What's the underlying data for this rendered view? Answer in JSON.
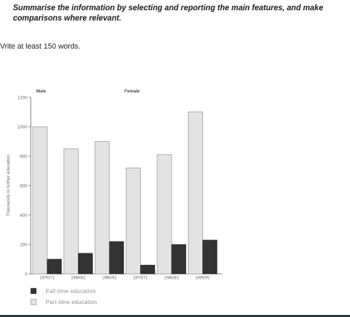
{
  "instruction": "Summarise the information by selecting and reporting the main features, and make comparisons where relevant.",
  "task_note": "Vrite at least 150 words.",
  "chart_data": {
    "type": "bar",
    "title": "",
    "ylabel": "Thousands in further education",
    "xlabel": "",
    "ylim": [
      0,
      1200
    ],
    "yticks": [
      0,
      200,
      400,
      600,
      800,
      1000,
      1200
    ],
    "groups": [
      {
        "label": "Male",
        "categories": [
          "1970/71",
          "1980/81",
          "1990/91"
        ]
      },
      {
        "label": "Female",
        "categories": [
          "1970/71",
          "1980/81",
          "1990/91"
        ]
      }
    ],
    "categories": [
      "1970/71",
      "1980/81",
      "1990/91",
      "1970/71",
      "1980/81",
      "1990/91"
    ],
    "series": [
      {
        "name": "Full-time education",
        "color": "#333333",
        "values": [
          100,
          140,
          220,
          60,
          200,
          230
        ]
      },
      {
        "name": "Part-time education",
        "color": "#e3e3e3",
        "values": [
          1000,
          850,
          900,
          720,
          810,
          1100
        ]
      }
    ],
    "legend_position": "bottom-left",
    "grid": false
  }
}
